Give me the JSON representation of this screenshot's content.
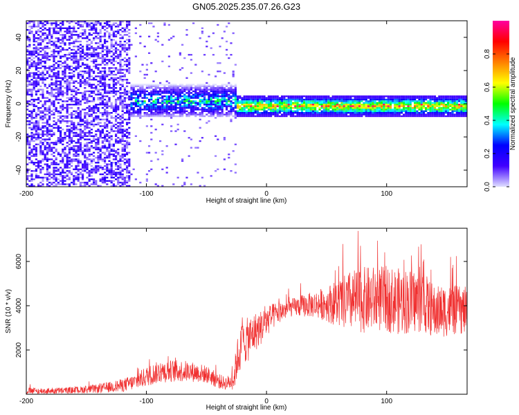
{
  "title": "GN05.2025.235.07.26.G23",
  "chart_data": [
    {
      "type": "heatmap",
      "name": "spectrogram",
      "xlabel": "Height of straight line (km)",
      "ylabel": "Frequency (Hz)",
      "xlim": [
        -200,
        167
      ],
      "ylim": [
        -50,
        50
      ],
      "xticks": [
        -200,
        -100,
        0,
        100
      ],
      "xtick_labels": [
        "-200",
        "-100",
        "0",
        "100"
      ],
      "yticks": [
        -40,
        -20,
        0,
        20,
        40
      ],
      "ytick_labels": [
        "-40",
        "-20",
        "0",
        "20",
        "40"
      ],
      "colorbar": {
        "label": "Normalized spectral amplitude",
        "range": [
          0,
          1
        ],
        "ticks": [
          0.0,
          0.2,
          0.4,
          0.6,
          0.8
        ],
        "tick_labels": [
          "0.0",
          "0.2",
          "0.4",
          "0.6",
          "0.8"
        ],
        "colors": [
          "#e0e0ff",
          "#4000ff",
          "#0000ff",
          "#00ffff",
          "#00ff00",
          "#ffff00",
          "#ff8000",
          "#ff0000",
          "#ff00a0"
        ]
      },
      "regions": [
        {
          "x_range": [
            -200,
            -115
          ],
          "freq_range": [
            -50,
            50
          ],
          "amplitude": 0.1,
          "description": "noise"
        },
        {
          "x_range": [
            -115,
            -25
          ],
          "freq_center": 2,
          "freq_halfwidth": 10,
          "amplitude": 0.35
        },
        {
          "x_range": [
            -25,
            167
          ],
          "freq_center": -1,
          "freq_halfwidth": 4,
          "amplitude": 0.7,
          "peak": 0.95
        }
      ]
    },
    {
      "type": "line",
      "name": "snr",
      "xlabel": "Height of straight line (km)",
      "ylabel": "SNR (10 * v/v)",
      "xlim": [
        -200,
        167
      ],
      "ylim": [
        0,
        7500
      ],
      "xticks": [
        -200,
        -100,
        0,
        100
      ],
      "xtick_labels": [
        "-200",
        "-100",
        "0",
        "100"
      ],
      "yticks": [
        2000,
        4000,
        6000
      ],
      "ytick_labels": [
        "2000",
        "4000",
        "6000"
      ],
      "color": "#f03030",
      "x": [
        -200,
        -180,
        -160,
        -140,
        -120,
        -110,
        -100,
        -90,
        -80,
        -70,
        -60,
        -50,
        -40,
        -35,
        -30,
        -27,
        -25,
        -22,
        -20,
        -15,
        -10,
        -5,
        0,
        10,
        20,
        30,
        40,
        50,
        60,
        70,
        80,
        90,
        100,
        110,
        120,
        130,
        140,
        150,
        160,
        167
      ],
      "y": [
        150,
        150,
        180,
        250,
        400,
        550,
        800,
        1000,
        1050,
        1050,
        1000,
        900,
        600,
        500,
        550,
        700,
        1500,
        2000,
        2300,
        2500,
        2800,
        3000,
        3300,
        3700,
        3900,
        4000,
        4050,
        4100,
        4100,
        4200,
        4250,
        4300,
        4300,
        4200,
        4200,
        4200,
        3700,
        3800,
        3800,
        3750
      ],
      "amplitude": [
        150,
        150,
        150,
        200,
        300,
        350,
        450,
        500,
        500,
        500,
        450,
        400,
        350,
        300,
        350,
        500,
        900,
        1000,
        1000,
        1000,
        900,
        800,
        700,
        500,
        400,
        500,
        600,
        800,
        1100,
        1400,
        1500,
        1500,
        1500,
        1500,
        1500,
        1400,
        1200,
        1200,
        1100,
        1100
      ]
    }
  ]
}
